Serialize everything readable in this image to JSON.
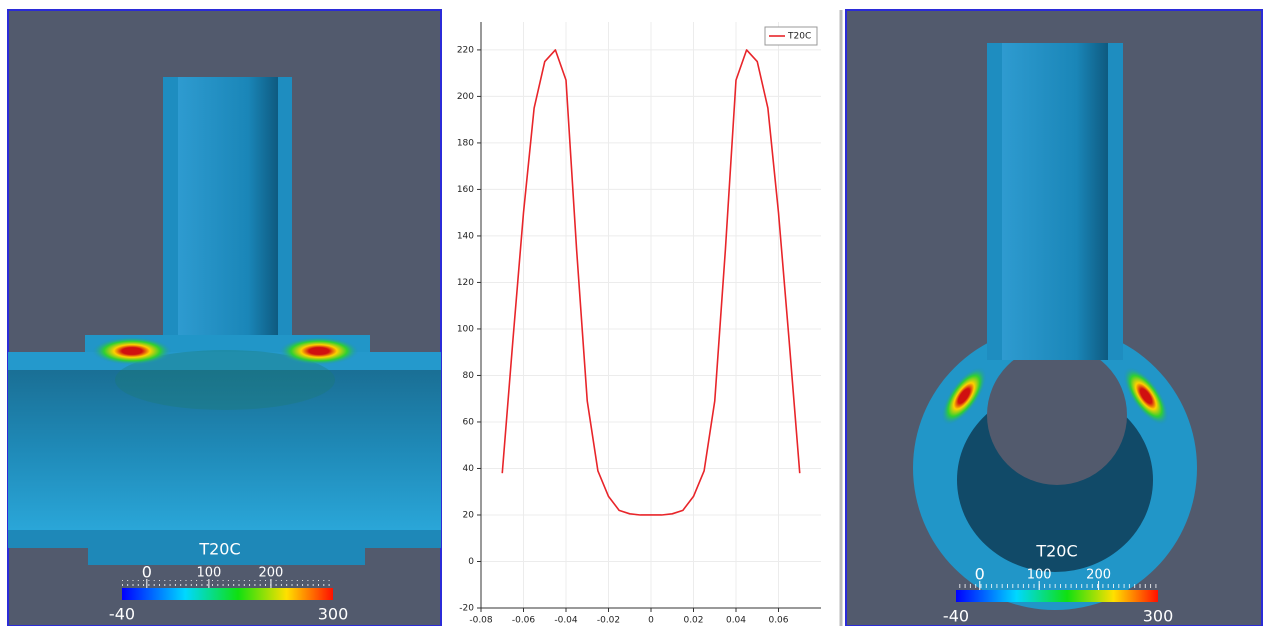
{
  "left_view": {
    "colorbar": {
      "title": "T20C",
      "range": [
        -40,
        300
      ],
      "ticks": [
        0,
        100,
        200
      ]
    }
  },
  "right_view": {
    "colorbar": {
      "title": "T20C",
      "range": [
        -40,
        300
      ],
      "ticks": [
        0,
        100,
        200
      ]
    }
  },
  "chart_data": {
    "type": "line",
    "x": [
      -0.07,
      -0.065,
      -0.06,
      -0.055,
      -0.05,
      -0.045,
      -0.04,
      -0.035,
      -0.03,
      -0.025,
      -0.02,
      -0.015,
      -0.01,
      -0.005,
      0,
      0.005,
      0.01,
      0.015,
      0.02,
      0.025,
      0.03,
      0.035,
      0.04,
      0.045,
      0.05,
      0.055,
      0.06,
      0.065,
      0.07
    ],
    "series": [
      {
        "name": "T20C",
        "color": "#e8252a",
        "values": [
          38,
          95,
          150,
          195,
          215,
          220,
          207,
          134,
          69,
          39,
          28,
          22,
          20.5,
          20,
          20,
          20,
          20.5,
          22,
          28,
          39,
          69,
          134,
          207,
          220,
          215,
          195,
          150,
          95,
          38
        ]
      }
    ],
    "xlim": [
      -0.08,
      0.08
    ],
    "xticks": [
      -0.08,
      -0.06,
      -0.04,
      -0.02,
      0,
      0.02,
      0.04,
      0.06
    ],
    "ylim": [
      -20,
      232
    ],
    "yticks": [
      -20,
      0,
      20,
      40,
      60,
      80,
      100,
      120,
      140,
      160,
      180,
      200,
      220
    ],
    "grid": true,
    "legend": "top-right"
  }
}
